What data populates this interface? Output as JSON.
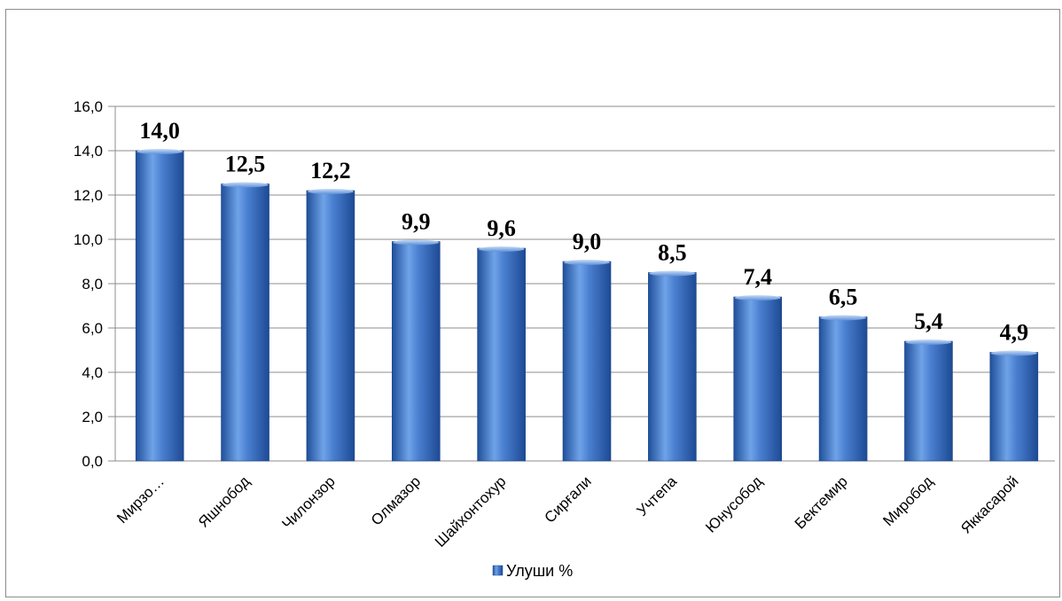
{
  "chart_data": {
    "type": "bar",
    "categories": [
      "Мирзо…",
      "Яшнобод",
      "Чилонзор",
      "Олмазор",
      "Шайхонтохур",
      "Сирғали",
      "Учтепа",
      "Юнусобод",
      "Бектемир",
      "Миробод",
      "Яккасарой"
    ],
    "series": [
      {
        "name": "Улуши %",
        "values": [
          14.0,
          12.5,
          12.2,
          9.9,
          9.6,
          9.0,
          8.5,
          7.4,
          6.5,
          5.4,
          4.9
        ],
        "labels": [
          "14,0",
          "12,5",
          "12,2",
          "9,9",
          "9,6",
          "9,0",
          "8,5",
          "7,4",
          "6,5",
          "5,4",
          "4,9"
        ]
      }
    ],
    "ylim": [
      0,
      16
    ],
    "y_ticks": [
      "0,0",
      "2,0",
      "4,0",
      "6,0",
      "8,0",
      "10,0",
      "12,0",
      "14,0",
      "16,0"
    ],
    "grid": true,
    "legend_position": "bottom",
    "colors": {
      "bar": "#4a7fd0",
      "bar_dark": "#1f4f9a",
      "bar_light": "#9cc2f2",
      "grid": "#8c8c8c"
    }
  }
}
